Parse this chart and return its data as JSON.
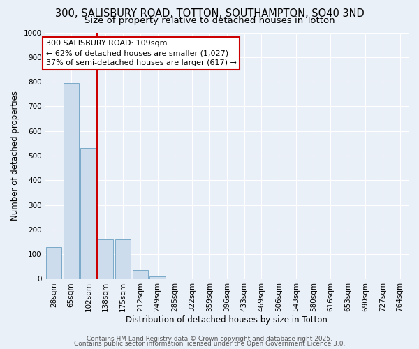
{
  "title_line1": "300, SALISBURY ROAD, TOTTON, SOUTHAMPTON, SO40 3ND",
  "title_line2": "Size of property relative to detached houses in Totton",
  "xlabel": "Distribution of detached houses by size in Totton",
  "ylabel": "Number of detached properties",
  "bar_labels": [
    "28sqm",
    "65sqm",
    "102sqm",
    "138sqm",
    "175sqm",
    "212sqm",
    "249sqm",
    "285sqm",
    "322sqm",
    "359sqm",
    "396sqm",
    "433sqm",
    "469sqm",
    "506sqm",
    "543sqm",
    "580sqm",
    "616sqm",
    "653sqm",
    "690sqm",
    "727sqm",
    "764sqm"
  ],
  "bar_values": [
    130,
    795,
    530,
    160,
    160,
    35,
    10,
    0,
    0,
    0,
    0,
    0,
    0,
    0,
    0,
    0,
    0,
    0,
    0,
    0,
    0
  ],
  "bar_color": "#ccdcec",
  "bar_edge_color": "#7aaac8",
  "background_color": "#eaf0f8",
  "grid_color": "#ffffff",
  "vline_x": 2.5,
  "vline_color": "#cc0000",
  "annotation_text": "300 SALISBURY ROAD: 109sqm\n← 62% of detached houses are smaller (1,027)\n37% of semi-detached houses are larger (617) →",
  "annotation_box_facecolor": "#ffffff",
  "annotation_box_edgecolor": "#cc0000",
  "annotation_text_color": "#000000",
  "ylim": [
    0,
    1000
  ],
  "yticks": [
    0,
    100,
    200,
    300,
    400,
    500,
    600,
    700,
    800,
    900,
    1000
  ],
  "footer_line1": "Contains HM Land Registry data © Crown copyright and database right 2025.",
  "footer_line2": "Contains public sector information licensed under the Open Government Licence 3.0.",
  "title_fontsize": 10.5,
  "subtitle_fontsize": 9.5,
  "axis_label_fontsize": 8.5,
  "tick_fontsize": 7.5,
  "annotation_fontsize": 8,
  "footer_fontsize": 6.5
}
